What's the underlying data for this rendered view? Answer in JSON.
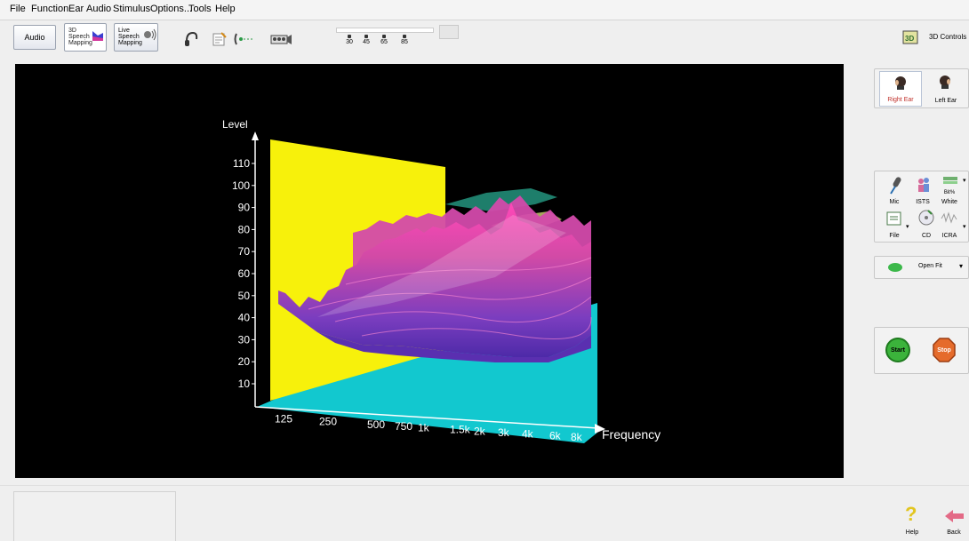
{
  "menu": [
    "File",
    "Function",
    "Ear",
    "Audio",
    "Stimulus",
    "Options...",
    "Tools",
    "Help"
  ],
  "toolbar": {
    "audio_label": "Audio",
    "speech3d_label": [
      "3D",
      "Speech",
      "Mapping"
    ],
    "live_label": [
      "Live",
      "Speech",
      "Mapping"
    ],
    "tone_levels": [
      "30",
      "45",
      "65",
      "85"
    ],
    "controls3d_label": "3D Controls"
  },
  "ear": {
    "right_label": "Right Ear",
    "left_label": "Left Ear",
    "right_color": "#c0302a"
  },
  "stimulus": {
    "mic_label": "Mic",
    "ists_label": "ISTS",
    "white_label": "White",
    "white_sub": "Bit%",
    "file_label": "File",
    "cd_label": "CD",
    "icra_label": "ICRA"
  },
  "openfit": {
    "label": "Open Fit"
  },
  "run": {
    "start_label": "Start",
    "stop_label": "Stop"
  },
  "footer": {
    "help_label": "Help",
    "back_label": "Back"
  },
  "chart_data": {
    "type": "3d-surface",
    "ylabel": "Level",
    "xlabel": "Frequency",
    "y_ticks": [
      10,
      20,
      30,
      40,
      50,
      60,
      70,
      80,
      90,
      100,
      110
    ],
    "x_ticks": [
      "125",
      "250",
      "500",
      "750",
      "1k",
      "1.5k",
      "2k",
      "3k",
      "4k",
      "6k",
      "8k"
    ],
    "colors": {
      "wall": "#f6f10a",
      "floor": "#11c6cc",
      "surface_low": "#5a2fb8",
      "surface_high": "#ff3fb2",
      "target_upper": "#1f7a67",
      "target_lower": "#a8a85a"
    }
  }
}
